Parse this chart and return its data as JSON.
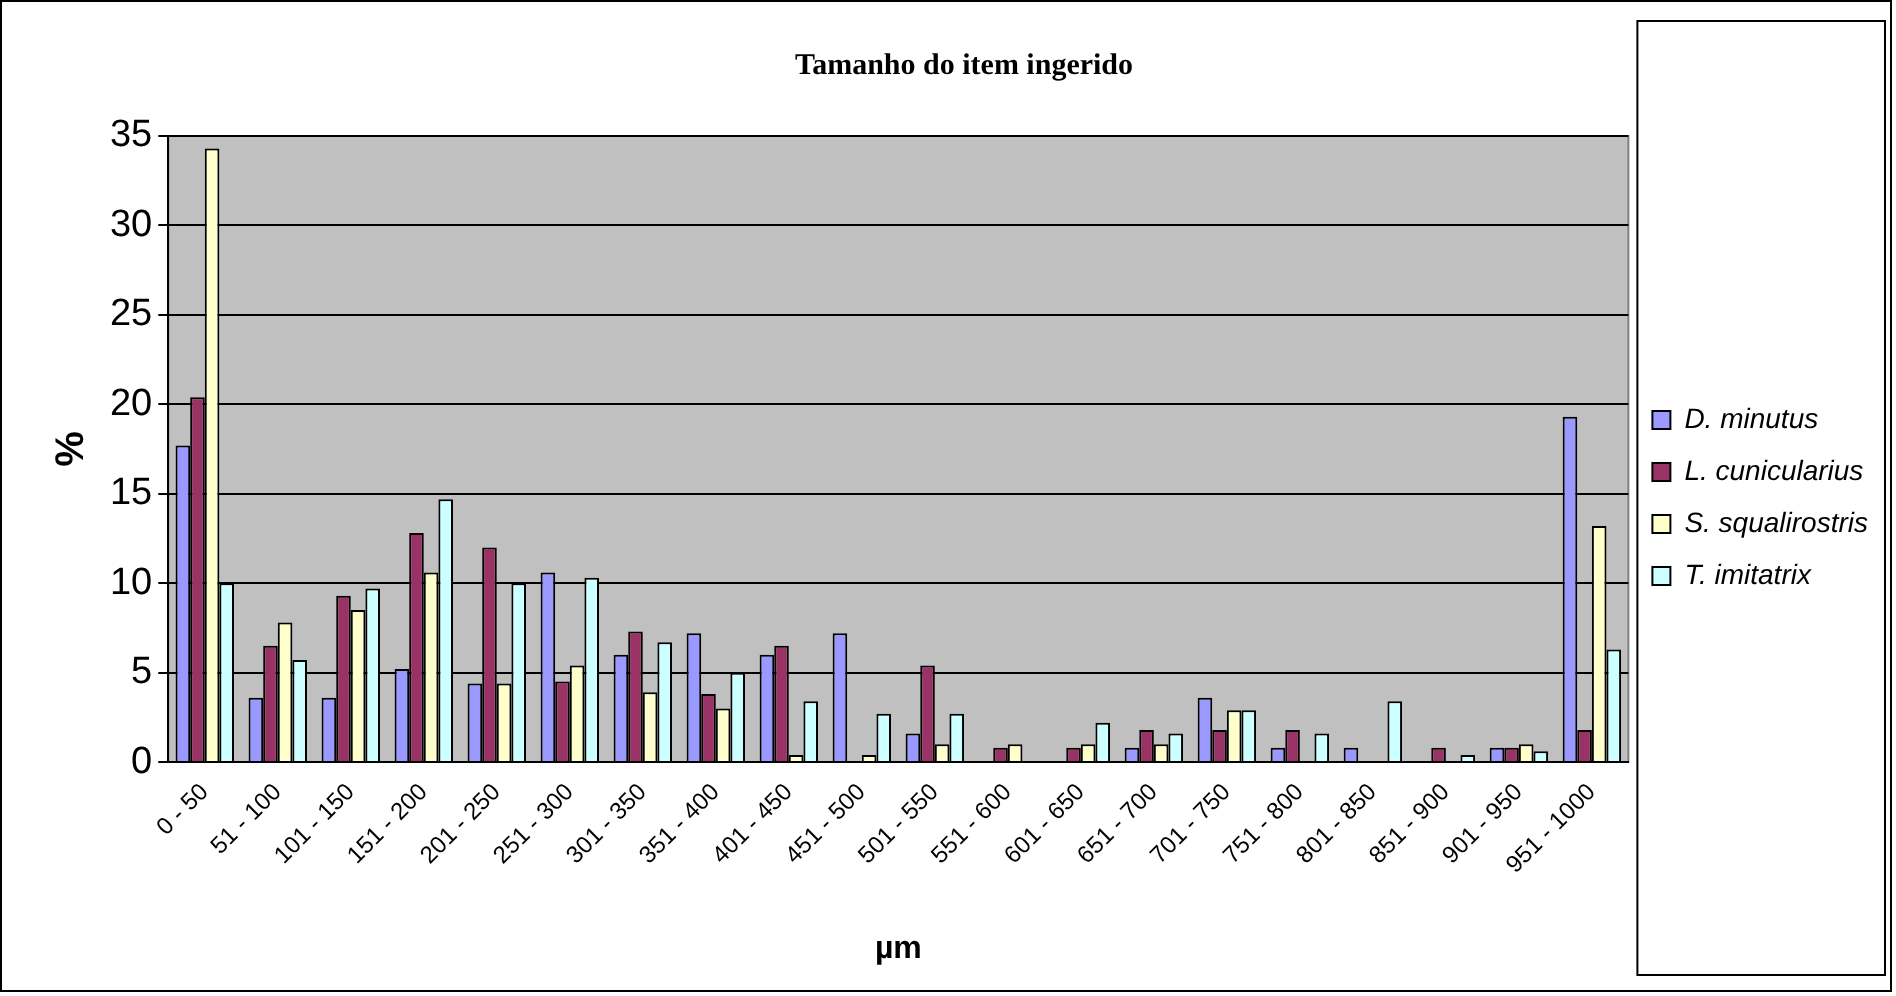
{
  "chart_data": {
    "type": "bar",
    "title": "Tamanho do item ingerido",
    "xlabel": "µm",
    "ylabel": "%",
    "categories": [
      "0 - 50",
      "51 - 100",
      "101 - 150",
      "151 - 200",
      "201 - 250",
      "251 - 300",
      "301 - 350",
      "351 - 400",
      "401 - 450",
      "451 - 500",
      "501 - 550",
      "551 - 600",
      "601 - 650",
      "651 - 700",
      "701 - 750",
      "751 - 800",
      "801 - 850",
      "851 - 900",
      "901 - 950",
      "951 - 1000"
    ],
    "series": [
      {
        "name": "D. minutus",
        "color": "#9999ff",
        "values": [
          17.7,
          3.6,
          3.6,
          5.2,
          4.4,
          10.6,
          6.0,
          7.2,
          6.0,
          7.2,
          1.6,
          0,
          0,
          0.8,
          3.6,
          0.8,
          0.8,
          0,
          0.8,
          19.3
        ]
      },
      {
        "name": "L. cunicularius",
        "color": "#993366",
        "values": [
          20.4,
          6.5,
          9.3,
          12.8,
          12.0,
          4.5,
          7.3,
          3.8,
          6.5,
          0,
          5.4,
          0.8,
          0.8,
          1.8,
          1.8,
          1.8,
          0,
          0.8,
          0.8,
          1.8
        ]
      },
      {
        "name": "S. squalirostris",
        "color": "#ffffcc",
        "values": [
          34.3,
          7.8,
          8.5,
          10.6,
          4.4,
          5.4,
          3.9,
          3.0,
          0.4,
          0.4,
          1.0,
          1.0,
          1.0,
          1.0,
          2.9,
          0,
          0,
          0,
          1.0,
          13.2
        ]
      },
      {
        "name": "T. imitatrix",
        "color": "#ccffff",
        "values": [
          10,
          5.7,
          9.7,
          14.7,
          10,
          10.3,
          6.7,
          5.0,
          3.4,
          2.7,
          2.7,
          0,
          2.2,
          1.6,
          2.9,
          1.6,
          3.4,
          0.4,
          0.6,
          6.3
        ]
      }
    ],
    "ylim": [
      0,
      35
    ],
    "yticks": [
      0,
      5,
      10,
      15,
      20,
      25,
      30,
      35
    ],
    "grid": "y",
    "legend": "right"
  }
}
